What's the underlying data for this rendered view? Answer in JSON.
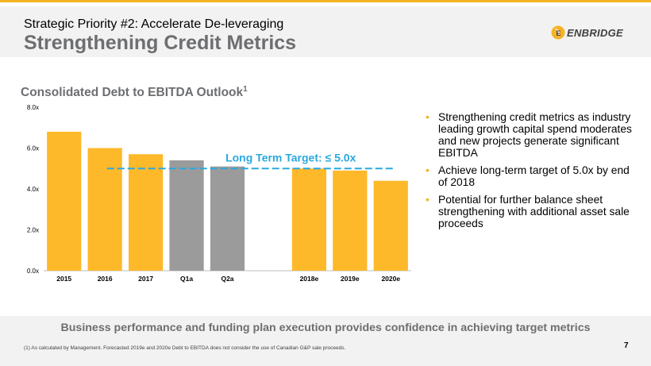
{
  "header": {
    "kicker": "Strategic Priority #2: Accelerate De-leveraging",
    "title": "Strengthening Credit Metrics"
  },
  "logo": {
    "text": "ENBRIDGE",
    "mark": "E",
    "icon": "enbridge-flame-logo"
  },
  "section": {
    "title": "Consolidated Debt to EBITDA Outlook",
    "superscript": "1"
  },
  "chart_data": {
    "type": "bar",
    "title": "Consolidated Debt to EBITDA Outlook",
    "categories": [
      "2015",
      "2016",
      "2017",
      "Q1a",
      "Q2a",
      "",
      "2018e",
      "2019e",
      "2020e"
    ],
    "values": [
      6.8,
      6.0,
      5.7,
      5.4,
      5.1,
      null,
      5.0,
      4.9,
      4.4
    ],
    "bar_colors": [
      "#fdb92a",
      "#fdb92a",
      "#fdb92a",
      "#9b9b9b",
      "#9b9b9b",
      null,
      "#fdb92a",
      "#fdb92a",
      "#fdb92a"
    ],
    "ylim": [
      0,
      8
    ],
    "yticks": [
      0,
      2,
      4,
      6,
      8
    ],
    "ytick_labels": [
      "0.0x",
      "2.0x",
      "4.0x",
      "6.0x",
      "8.0x"
    ],
    "xlabel": "",
    "ylabel": "",
    "grid": false,
    "target_line": {
      "value": 5.0,
      "label": "Long Term Target: ≤ 5.0x",
      "color": "#2aa9e0",
      "style": "dashed"
    }
  },
  "bullets": [
    "Strengthening credit metrics as industry leading growth capital spend moderates and new projects generate significant EBITDA",
    "Achieve long-term target of 5.0x by end of 2018",
    "Potential for further balance sheet strengthening with additional asset sale proceeds"
  ],
  "bullet_glyph": "•",
  "bottom_message": "Business performance and funding plan execution provides confidence in achieving target metrics",
  "footnote": "(1)  As calculated by Management. Forecasted 2019e and 2020e Debt to EBITDA does not consider the use of Canadian G&P sale proceeds.",
  "page_number": "7",
  "colors": {
    "accent": "#f5b324",
    "bar_actual": "#fdb92a",
    "bar_ytd": "#9b9b9b",
    "target": "#2aa9e0",
    "title_gray": "#6d6e71",
    "band": "#f2f2f2"
  }
}
